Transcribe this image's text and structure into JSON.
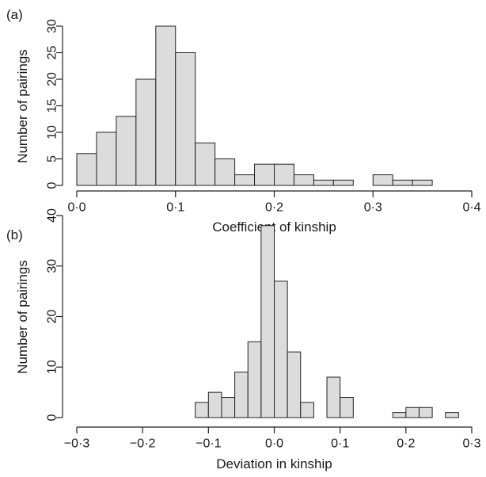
{
  "chart_data": [
    {
      "type": "bar",
      "panel_label": "(a)",
      "xlabel": "Coefficient of kinship",
      "ylabel": "Number of pairings",
      "x_ticks": [
        "0·0",
        "0·1",
        "0·2",
        "0·3",
        "0·4"
      ],
      "x_tick_values": [
        0,
        0.1,
        0.2,
        0.3,
        0.4
      ],
      "y_ticks": [
        "0",
        "5",
        "10",
        "15",
        "20",
        "25",
        "30"
      ],
      "y_tick_values": [
        0,
        5,
        10,
        15,
        20,
        25,
        30
      ],
      "xlim": [
        0,
        0.4
      ],
      "ylim": [
        0,
        30
      ],
      "bin_width": 0.02,
      "bin_starts": [
        0,
        0.02,
        0.04,
        0.06,
        0.08,
        0.1,
        0.12,
        0.14,
        0.16,
        0.18,
        0.2,
        0.22,
        0.24,
        0.26,
        0.28,
        0.3,
        0.32,
        0.34,
        0.36,
        0.38
      ],
      "values": [
        6,
        10,
        13,
        20,
        30,
        25,
        8,
        5,
        2,
        4,
        4,
        2,
        1,
        1,
        0,
        2,
        1,
        1,
        0,
        0
      ]
    },
    {
      "type": "bar",
      "panel_label": "(b)",
      "xlabel": "Deviation in kinship",
      "ylabel": "Number of pairings",
      "x_ticks": [
        "−0·3",
        "−0·2",
        "−0·1",
        "0·0",
        "0·1",
        "0·2",
        "0·3"
      ],
      "x_tick_values": [
        -0.3,
        -0.2,
        -0.1,
        0,
        0.1,
        0.2,
        0.3
      ],
      "y_ticks": [
        "0",
        "10",
        "20",
        "30",
        "40"
      ],
      "y_tick_values": [
        0,
        10,
        20,
        30,
        40
      ],
      "xlim": [
        -0.3,
        0.3
      ],
      "ylim": [
        0,
        40
      ],
      "bin_width": 0.02,
      "bin_starts": [
        -0.3,
        -0.28,
        -0.26,
        -0.24,
        -0.22,
        -0.2,
        -0.18,
        -0.16,
        -0.14,
        -0.12,
        -0.1,
        -0.08,
        -0.06,
        -0.04,
        -0.02,
        0.0,
        0.02,
        0.04,
        0.06,
        0.08,
        0.1,
        0.12,
        0.14,
        0.16,
        0.18,
        0.2,
        0.22,
        0.24,
        0.26,
        0.28
      ],
      "values": [
        0,
        0,
        0,
        0,
        0,
        0,
        0,
        0,
        0,
        3,
        5,
        4,
        9,
        15,
        38,
        27,
        13,
        3,
        0,
        8,
        4,
        0,
        0,
        0,
        1,
        2,
        2,
        0,
        1,
        0
      ]
    }
  ]
}
